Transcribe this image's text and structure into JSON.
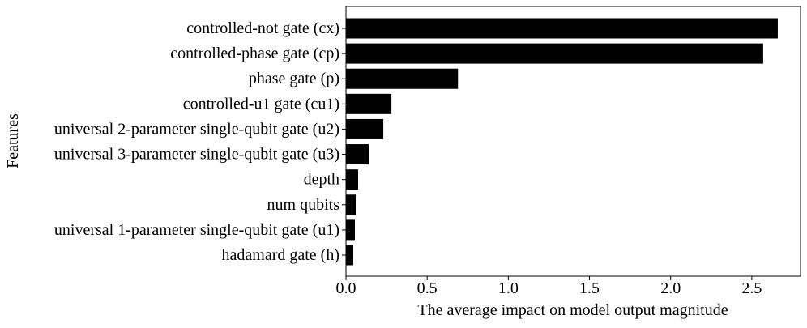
{
  "chart_data": {
    "type": "bar",
    "orientation": "horizontal",
    "categories": [
      "controlled-not gate (cx)",
      "controlled-phase gate (cp)",
      "phase gate (p)",
      "controlled-u1 gate (cu1)",
      "universal 2-parameter single-qubit gate (u2)",
      "universal 3-parameter single-qubit gate (u3)",
      "depth",
      "num qubits",
      "universal 1-parameter single-qubit gate (u1)",
      "hadamard gate (h)"
    ],
    "values": [
      2.66,
      2.57,
      0.69,
      0.28,
      0.23,
      0.14,
      0.075,
      0.06,
      0.055,
      0.045
    ],
    "xlabel": "The average impact on model output magnitude",
    "ylabel": "Features",
    "xlim": [
      0,
      2.8
    ],
    "xticks": [
      "0.0",
      "0.5",
      "1.0",
      "1.5",
      "2.0",
      "2.5"
    ],
    "bar_color": "#000000",
    "grid": false,
    "legend": false
  }
}
